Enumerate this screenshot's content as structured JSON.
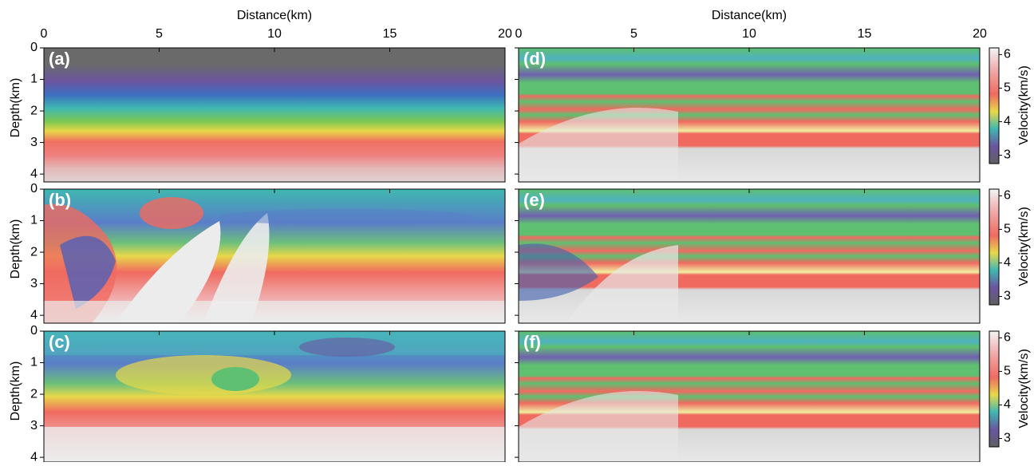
{
  "x_axis": {
    "label": "Distance(km)",
    "lim": [
      0,
      20
    ],
    "ticks": [
      0,
      5,
      10,
      15,
      20
    ]
  },
  "depth_axis": {
    "label": "Depth(km)",
    "lim": [
      0,
      4.25
    ],
    "ticks": [
      0,
      1,
      2,
      3,
      4
    ]
  },
  "colorbar": {
    "label": "Velocity(km/s)",
    "lim": [
      2.75,
      6.2
    ],
    "ticks": [
      3,
      4,
      5,
      6
    ]
  },
  "panels": [
    {
      "label": "(a)"
    },
    {
      "label": "(b)"
    },
    {
      "label": "(c)"
    },
    {
      "label": "(d)"
    },
    {
      "label": "(e)"
    },
    {
      "label": "(f)"
    }
  ]
}
